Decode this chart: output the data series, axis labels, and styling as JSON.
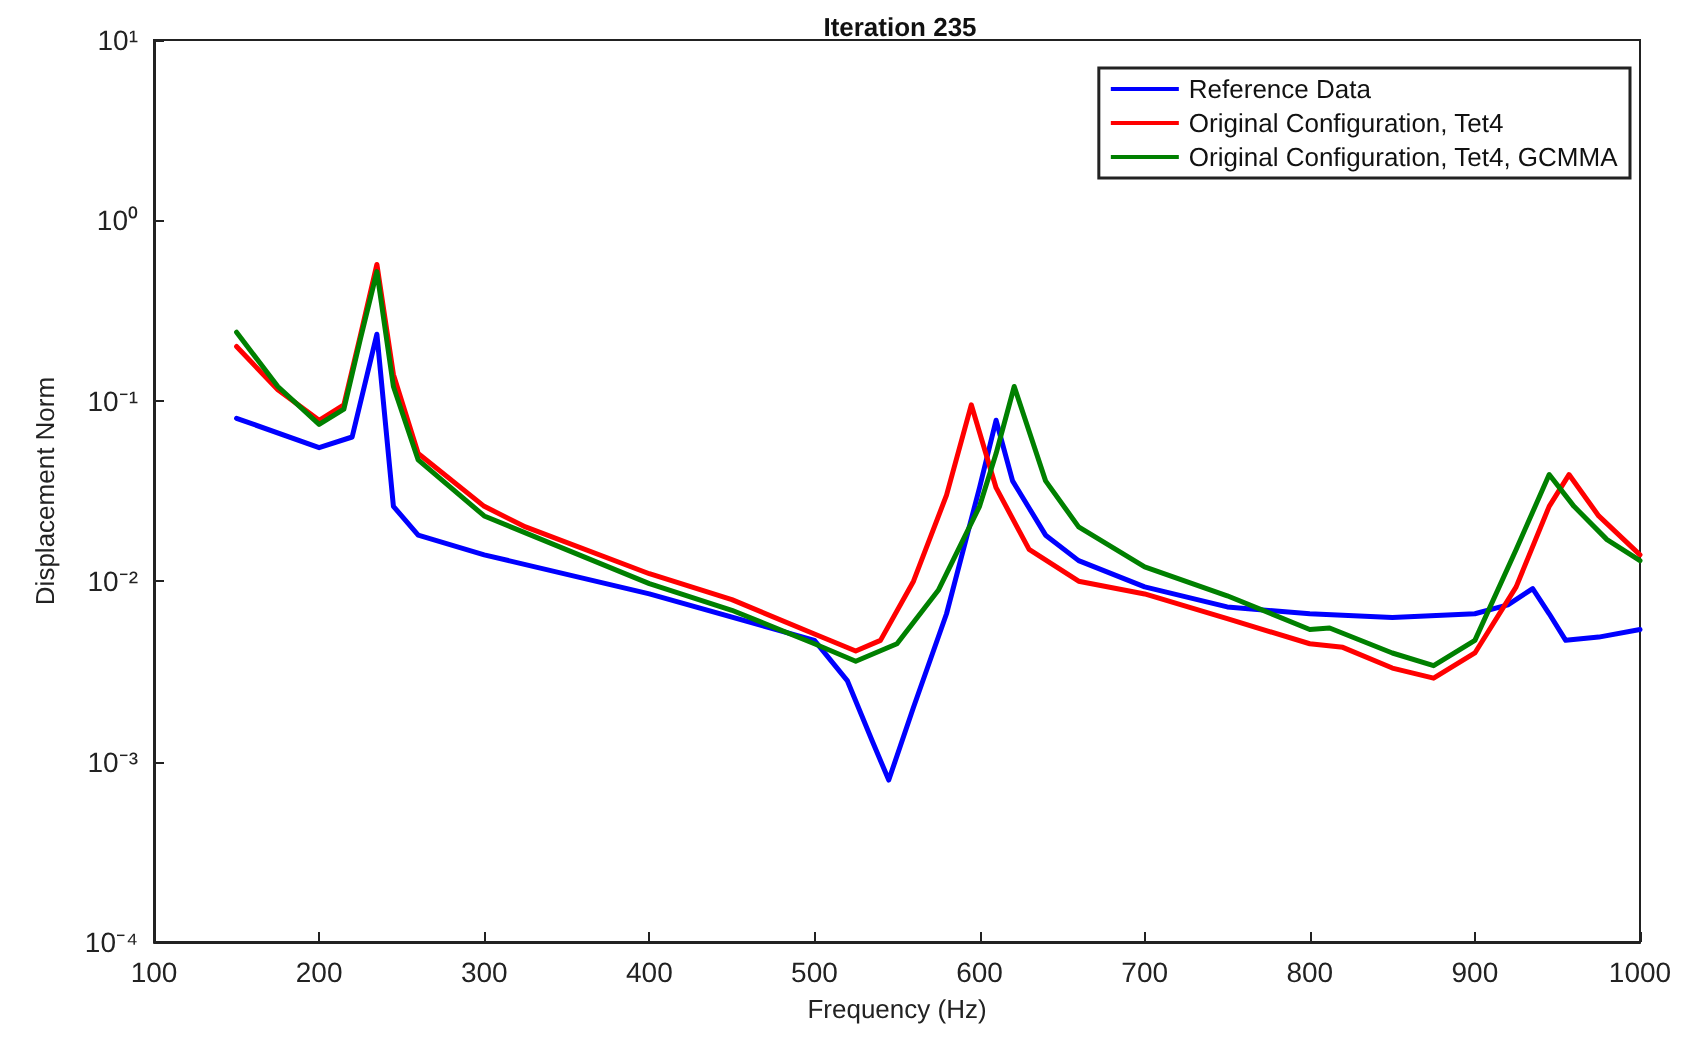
{
  "chart_data": {
    "type": "line",
    "title": "Iteration 235",
    "xlabel": "Frequency (Hz)",
    "ylabel": "Displacement Norm",
    "log": "y",
    "grid": false,
    "legend": "top right",
    "marker": "none",
    "line_style": "solid",
    "xlim": [
      100,
      1000
    ],
    "xticks": [
      100,
      200,
      300,
      400,
      500,
      600,
      700,
      800,
      900,
      1000
    ],
    "ylim": [
      0.0001,
      10
    ],
    "yticks": [
      {
        "value": 0.0001,
        "label": "10⁻⁴"
      },
      {
        "value": 0.001,
        "label": "10⁻³"
      },
      {
        "value": 0.01,
        "label": "10⁻²"
      },
      {
        "value": 0.1,
        "label": "10⁻¹"
      },
      {
        "value": 1,
        "label": "10⁰"
      },
      {
        "value": 10,
        "label": "10¹"
      }
    ],
    "series": [
      {
        "name": "Reference Data",
        "color": "#0000ff",
        "x": [
          150,
          200,
          220,
          235,
          245,
          260,
          300,
          400,
          500,
          520,
          535,
          545,
          560,
          580,
          600,
          610,
          620,
          640,
          660,
          700,
          750,
          800,
          850,
          900,
          920,
          935,
          945,
          955,
          975,
          1000
        ],
        "values": [
          0.08,
          0.055,
          0.063,
          0.234,
          0.026,
          0.018,
          0.014,
          0.0085,
          0.0047,
          0.0028,
          0.0013,
          0.00079,
          0.002,
          0.0066,
          0.033,
          0.078,
          0.036,
          0.018,
          0.013,
          0.0093,
          0.0072,
          0.0066,
          0.0063,
          0.0066,
          0.0074,
          0.0091,
          0.0066,
          0.0047,
          0.0049,
          0.0054
        ]
      },
      {
        "name": "Original Configuration, Tet4",
        "color": "#ff0000",
        "x": [
          150,
          175,
          200,
          215,
          225,
          235,
          245,
          260,
          300,
          325,
          400,
          450,
          500,
          525,
          540,
          560,
          580,
          595,
          610,
          630,
          660,
          700,
          750,
          800,
          820,
          850,
          875,
          900,
          925,
          945,
          957,
          975,
          1000
        ],
        "values": [
          0.2,
          0.115,
          0.078,
          0.095,
          0.23,
          0.57,
          0.14,
          0.051,
          0.026,
          0.02,
          0.011,
          0.0079,
          0.0051,
          0.0041,
          0.0047,
          0.01,
          0.03,
          0.095,
          0.033,
          0.015,
          0.01,
          0.0085,
          0.0062,
          0.0045,
          0.0043,
          0.0033,
          0.0029,
          0.004,
          0.0093,
          0.026,
          0.039,
          0.023,
          0.014
        ]
      },
      {
        "name": "Original Configuration, Tet4, GCMMA",
        "color": "#008000",
        "x": [
          150,
          175,
          200,
          215,
          225,
          235,
          245,
          260,
          300,
          400,
          450,
          500,
          525,
          550,
          575,
          600,
          610,
          621,
          640,
          660,
          700,
          750,
          800,
          812,
          850,
          875,
          900,
          925,
          945,
          960,
          980,
          1000
        ],
        "values": [
          0.24,
          0.12,
          0.074,
          0.09,
          0.22,
          0.52,
          0.12,
          0.047,
          0.023,
          0.0097,
          0.0069,
          0.0045,
          0.0036,
          0.0045,
          0.0089,
          0.026,
          0.051,
          0.12,
          0.036,
          0.02,
          0.012,
          0.0083,
          0.0054,
          0.0055,
          0.004,
          0.0034,
          0.0047,
          0.015,
          0.039,
          0.026,
          0.017,
          0.013
        ]
      }
    ]
  }
}
